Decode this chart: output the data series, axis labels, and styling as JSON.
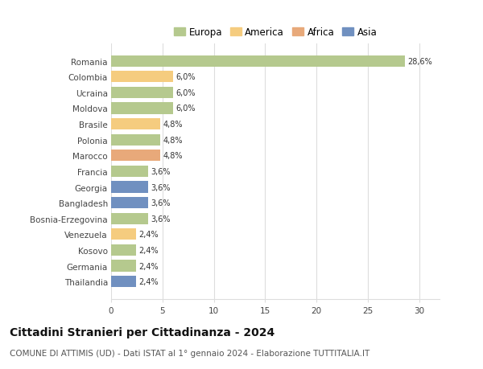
{
  "categories": [
    "Romania",
    "Colombia",
    "Ucraina",
    "Moldova",
    "Brasile",
    "Polonia",
    "Marocco",
    "Francia",
    "Georgia",
    "Bangladesh",
    "Bosnia-Erzegovina",
    "Venezuela",
    "Kosovo",
    "Germania",
    "Thailandia"
  ],
  "values": [
    28.6,
    6.0,
    6.0,
    6.0,
    4.8,
    4.8,
    4.8,
    3.6,
    3.6,
    3.6,
    3.6,
    2.4,
    2.4,
    2.4,
    2.4
  ],
  "labels": [
    "28,6%",
    "6,0%",
    "6,0%",
    "6,0%",
    "4,8%",
    "4,8%",
    "4,8%",
    "3,6%",
    "3,6%",
    "3,6%",
    "3,6%",
    "2,4%",
    "2,4%",
    "2,4%",
    "2,4%"
  ],
  "continents": [
    "Europa",
    "America",
    "Europa",
    "Europa",
    "America",
    "Europa",
    "Africa",
    "Europa",
    "Asia",
    "Asia",
    "Europa",
    "America",
    "Europa",
    "Europa",
    "Asia"
  ],
  "colors": {
    "Europa": "#b5c98e",
    "America": "#f5cc7f",
    "Africa": "#e8a97a",
    "Asia": "#7090c0"
  },
  "legend_order": [
    "Europa",
    "America",
    "Africa",
    "Asia"
  ],
  "title": "Cittadini Stranieri per Cittadinanza - 2024",
  "subtitle": "COMUNE DI ATTIMIS (UD) - Dati ISTAT al 1° gennaio 2024 - Elaborazione TUTTITALIA.IT",
  "xlim": [
    0,
    32
  ],
  "xticks": [
    0,
    5,
    10,
    15,
    20,
    25,
    30
  ],
  "background_color": "#ffffff",
  "grid_color": "#dddddd",
  "bar_height": 0.72,
  "title_fontsize": 10,
  "subtitle_fontsize": 7.5,
  "label_fontsize": 7,
  "tick_fontsize": 7.5,
  "legend_fontsize": 8.5
}
